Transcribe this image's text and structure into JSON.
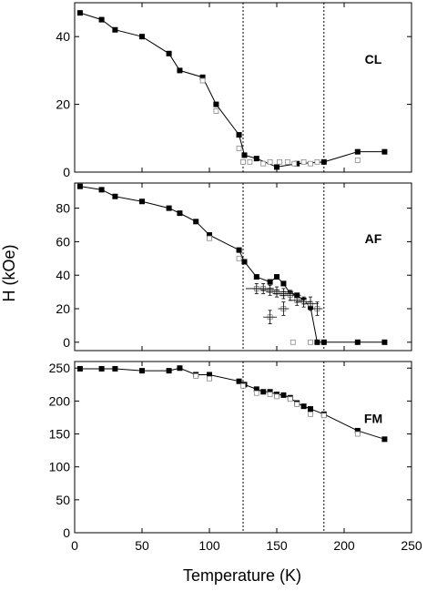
{
  "chart_data": {
    "type": "scatter",
    "xlabel": "Temperature (K)",
    "ylabel": "H (kOe)",
    "xlim": [
      0,
      250
    ],
    "xticks": [
      0,
      50,
      100,
      150,
      200,
      250
    ],
    "vlines": [
      125,
      185
    ],
    "grid": false,
    "panels": [
      {
        "label": "CL",
        "ylim": [
          0,
          50
        ],
        "yticks": [
          0,
          20,
          40
        ],
        "series": [
          {
            "marker": "filled-square",
            "connected": true,
            "x": [
              4,
              20,
              30,
              50,
              70,
              78,
              95,
              105,
              122,
              126,
              135,
              150,
              165,
              185,
              210,
              230
            ],
            "y": [
              47,
              45,
              42,
              40,
              35,
              30,
              28,
              20,
              11,
              5,
              4,
              1.5,
              2.5,
              3,
              6,
              6
            ]
          },
          {
            "marker": "open-square",
            "connected": false,
            "x": [
              95,
              105,
              122,
              125,
              130,
              140,
              145,
              152,
              158,
              163,
              170,
              175,
              180,
              210
            ],
            "y": [
              27,
              18,
              7,
              3,
              3,
              2.5,
              3,
              3,
              3,
              2.5,
              3,
              2.5,
              3,
              3.5
            ]
          }
        ]
      },
      {
        "label": "AF",
        "ylim": [
          -5,
          95
        ],
        "yticks": [
          0,
          20,
          40,
          60,
          80
        ],
        "series": [
          {
            "marker": "filled-square",
            "connected": true,
            "x": [
              4,
              20,
              30,
              50,
              70,
              78,
              90,
              100,
              122,
              126,
              135,
              145,
              150,
              155,
              160,
              165,
              170,
              175,
              180,
              185,
              210,
              230
            ],
            "y": [
              93,
              91,
              87,
              84,
              80,
              77,
              72,
              64,
              55,
              48,
              39,
              36,
              39,
              35,
              29,
              28,
              25,
              21,
              0,
              0,
              0,
              0
            ]
          },
          {
            "marker": "open-square",
            "connected": false,
            "x": [
              100,
              122,
              135,
              140,
              145,
              150,
              155,
              160,
              165,
              170,
              175,
              180,
              145,
              155,
              162,
              175
            ],
            "y": [
              62,
              50,
              32,
              32,
              31,
              30,
              29,
              28,
              25,
              24,
              23,
              20,
              15,
              20,
              0,
              0
            ]
          },
          {
            "marker": "open-square-errorbar",
            "connected": false,
            "x": [
              135,
              140,
              145,
              150,
              155,
              160,
              165,
              170,
              175,
              180,
              145,
              155
            ],
            "y": [
              32,
              32,
              31,
              30,
              29,
              28,
              25,
              24,
              23,
              20,
              15,
              20
            ],
            "xerr": [
              8,
              8,
              7,
              8,
              8,
              8,
              6,
              6,
              6,
              4,
              5,
              4
            ],
            "yerr": [
              3,
              3,
              3,
              3,
              3,
              3,
              3,
              3,
              4,
              4,
              4,
              4
            ]
          }
        ]
      },
      {
        "label": "FM",
        "ylim": [
          0,
          260
        ],
        "yticks": [
          0,
          50,
          100,
          150,
          200,
          250
        ],
        "series": [
          {
            "marker": "filled-square",
            "connected": true,
            "x": [
              4,
              20,
              30,
              50,
              70,
              78,
              90,
              100,
              122,
              126,
              135,
              140,
              145,
              150,
              155,
              160,
              165,
              170,
              175,
              185,
              210,
              230
            ],
            "y": [
              249,
              249,
              249,
              246,
              246,
              250,
              240,
              240,
              230,
              225,
              218,
              214,
              214,
              210,
              209,
              205,
              197,
              192,
              188,
              180,
              155,
              142
            ]
          },
          {
            "marker": "open-square",
            "connected": false,
            "x": [
              90,
              100,
              125,
              135,
              145,
              150,
              160,
              165,
              175,
              185,
              210
            ],
            "y": [
              238,
              234,
              223,
              212,
              210,
              207,
              203,
              195,
              180,
              178,
              150
            ]
          }
        ]
      }
    ]
  }
}
